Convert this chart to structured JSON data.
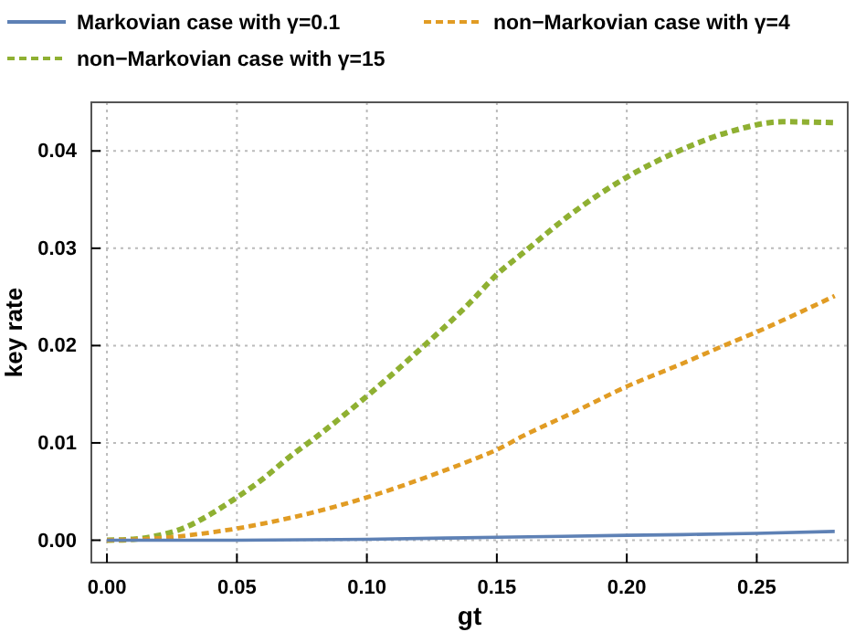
{
  "chart_data": {
    "type": "line",
    "xlabel": "gt",
    "ylabel": "key rate",
    "xlim": [
      -0.006,
      0.285
    ],
    "xticks": [
      {
        "value": 0,
        "label": "0.00"
      },
      {
        "value": 0.05,
        "label": "0.05"
      },
      {
        "value": 0.1,
        "label": "0.10"
      },
      {
        "value": 0.15,
        "label": "0.15"
      },
      {
        "value": 0.2,
        "label": "0.20"
      },
      {
        "value": 0.25,
        "label": "0.25"
      }
    ],
    "ylim": [
      -0.0023,
      0.045
    ],
    "yticks": [
      {
        "value": 0,
        "label": "0.00"
      },
      {
        "value": 0.01,
        "label": "0.01"
      },
      {
        "value": 0.02,
        "label": "0.02"
      },
      {
        "value": 0.03,
        "label": "0.03"
      },
      {
        "value": 0.04,
        "label": "0.04"
      }
    ],
    "grid": true,
    "legend": "top",
    "marker": "none",
    "series": [
      {
        "name": "Markovian case with γ=0.1",
        "color": "#5e81b5",
        "line_style": "solid",
        "x": [
          0,
          0.05,
          0.1,
          0.15,
          0.2,
          0.25,
          0.28
        ],
        "values": [
          0,
          0,
          0.0001,
          0.0003,
          0.0005,
          0.0007,
          0.0009
        ]
      },
      {
        "name": "non−Markovian case with γ=4",
        "color": "#e19c24",
        "line_style": "dashed",
        "x": [
          0,
          0.02,
          0.04,
          0.05,
          0.06,
          0.08,
          0.1,
          0.12,
          0.14,
          0.15,
          0.16,
          0.18,
          0.2,
          0.22,
          0.24,
          0.25,
          0.26,
          0.28
        ],
        "values": [
          0,
          0.0002,
          0.0008,
          0.0012,
          0.0017,
          0.0029,
          0.0044,
          0.0062,
          0.0082,
          0.0093,
          0.0107,
          0.0132,
          0.0158,
          0.018,
          0.0203,
          0.0214,
          0.0226,
          0.0251
        ]
      },
      {
        "name": "non−Markovian case with γ=15",
        "color": "#8fb032",
        "line_style": "dashed",
        "x": [
          0,
          0.01,
          0.02,
          0.03,
          0.04,
          0.05,
          0.06,
          0.07,
          0.08,
          0.09,
          0.1,
          0.12,
          0.14,
          0.15,
          0.16,
          0.18,
          0.2,
          0.22,
          0.24,
          0.26,
          0.28
        ],
        "values": [
          0,
          0.0001,
          0.0005,
          0.0013,
          0.0027,
          0.0044,
          0.0063,
          0.0085,
          0.0105,
          0.0126,
          0.0148,
          0.0195,
          0.0245,
          0.0273,
          0.0295,
          0.0338,
          0.0373,
          0.04,
          0.042,
          0.043,
          0.0429
        ]
      }
    ]
  }
}
